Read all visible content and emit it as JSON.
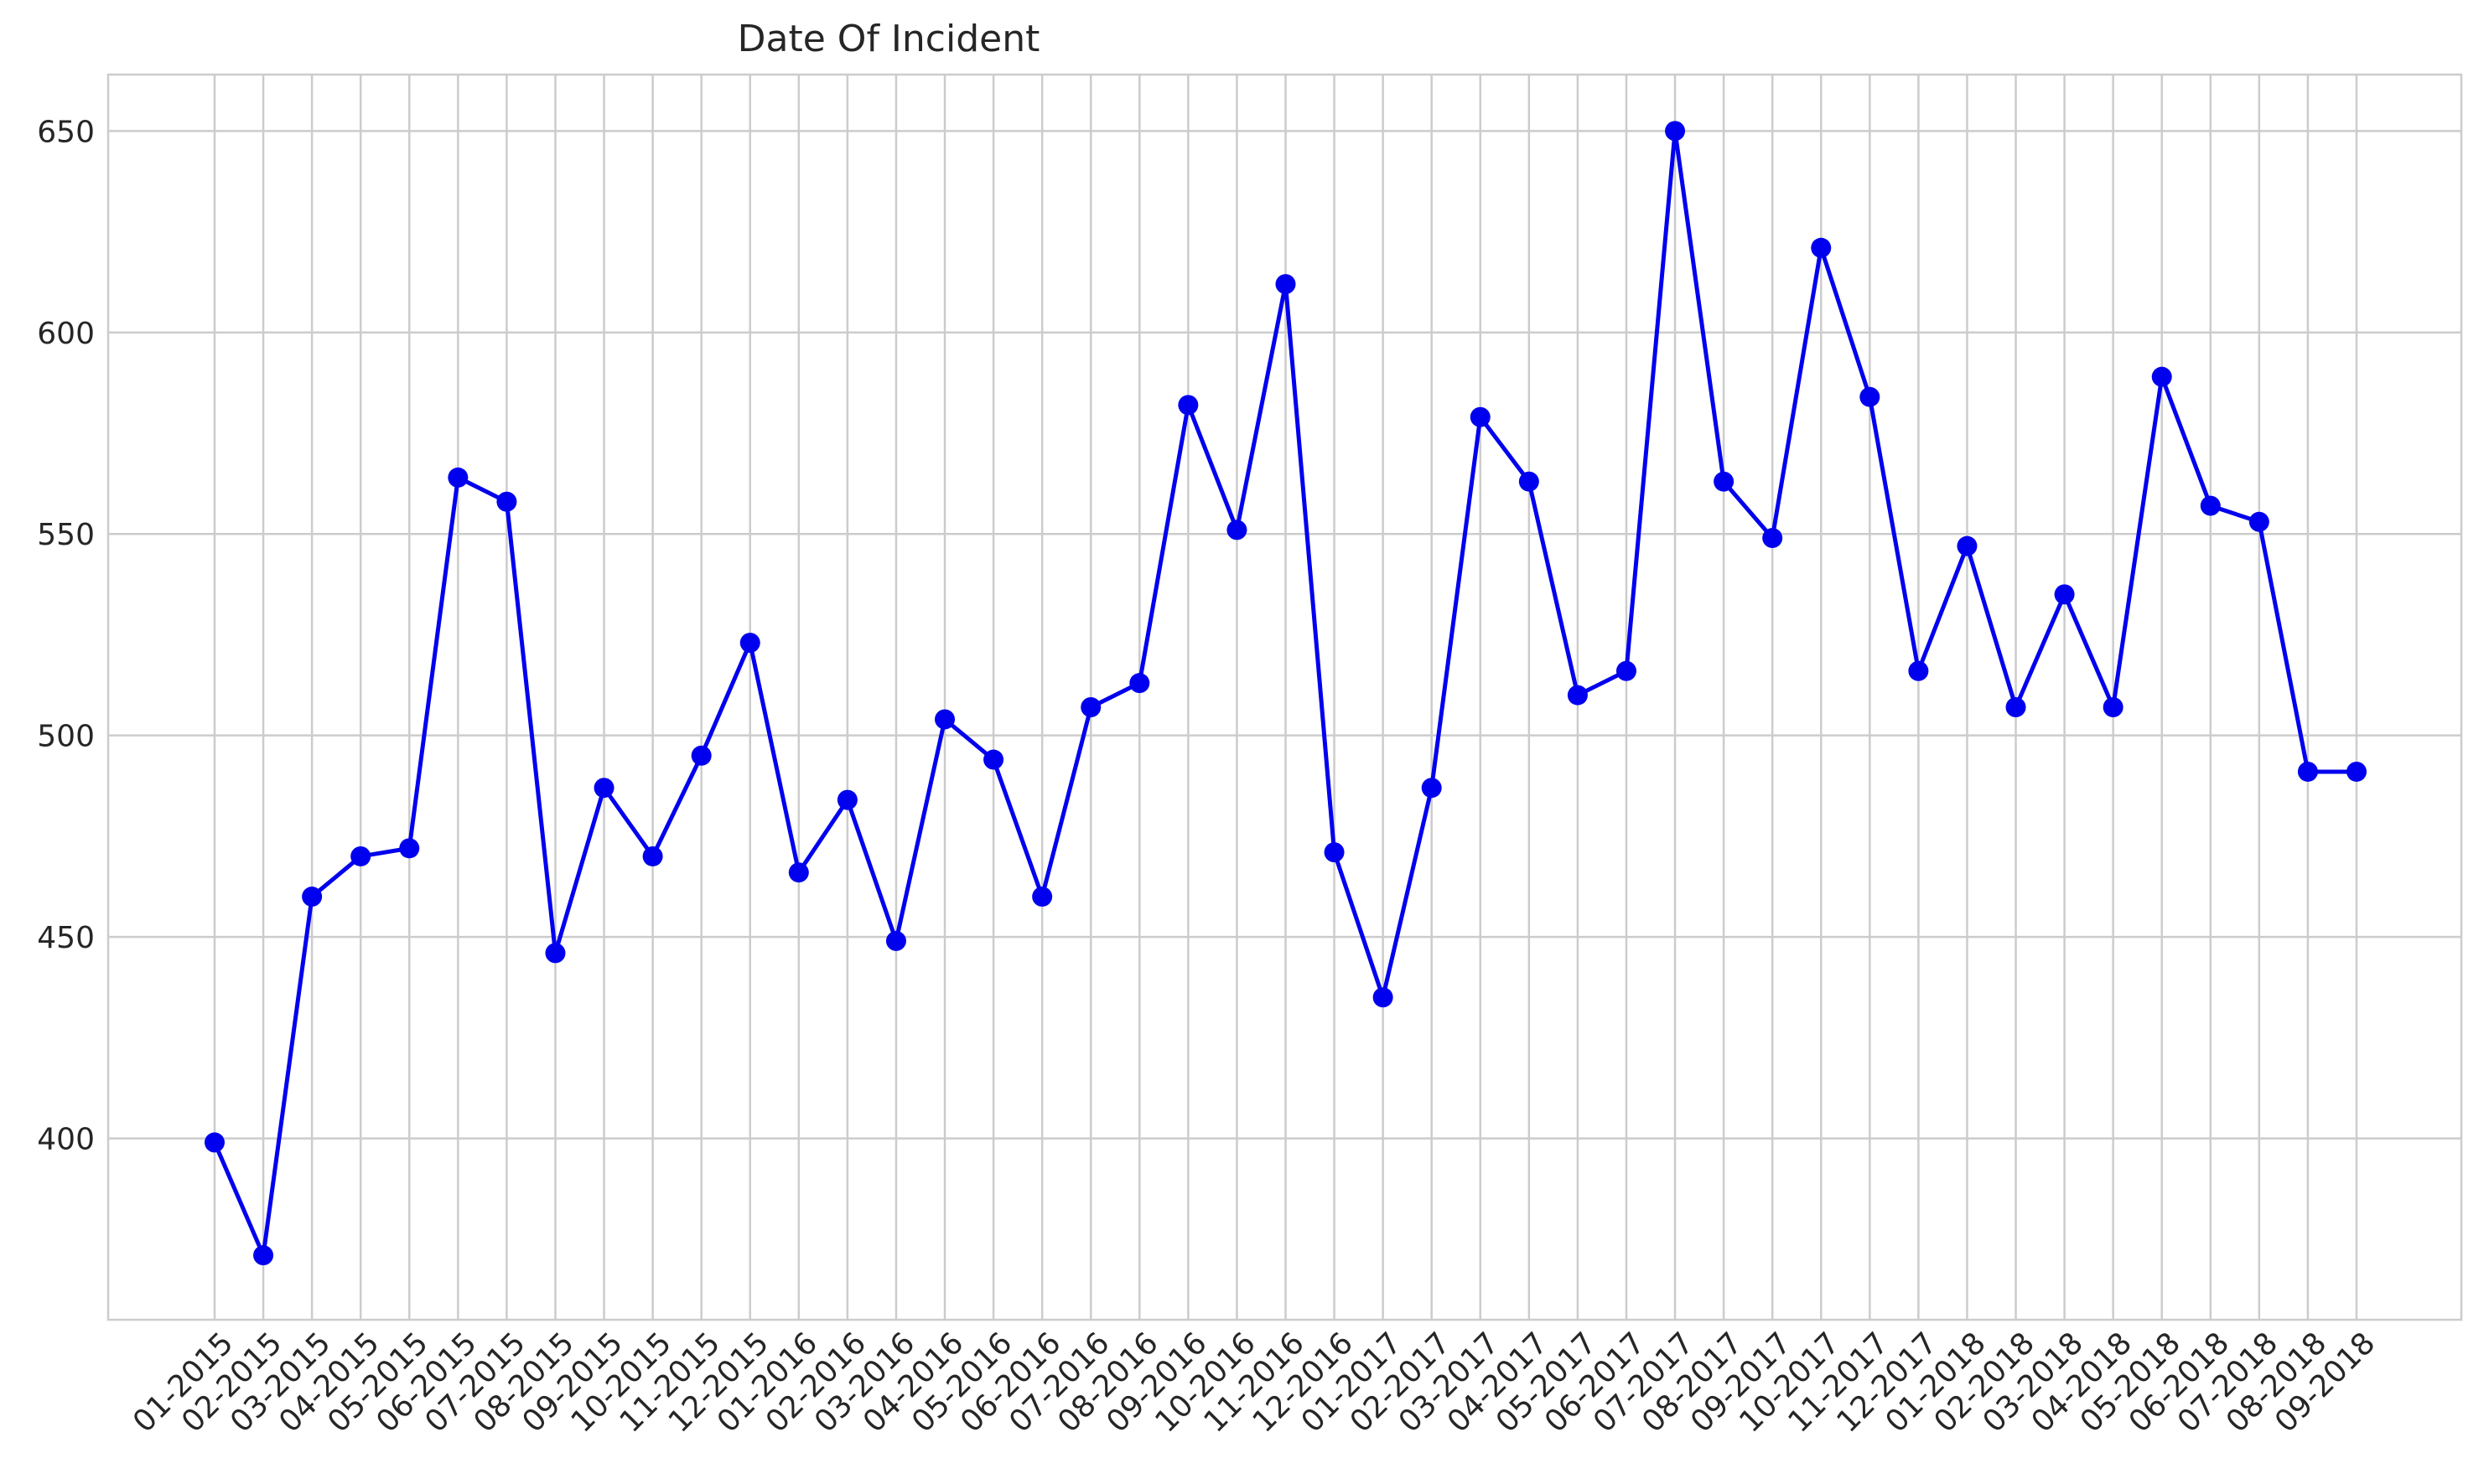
{
  "chart_data": {
    "type": "line",
    "title": "Date Of Incident",
    "xlabel": "",
    "ylabel": "",
    "ylim": [
      355,
      664
    ],
    "yticks": [
      400,
      450,
      500,
      550,
      600,
      650
    ],
    "grid": true,
    "marker": "circle",
    "line_color": "#0000ee",
    "grid_color": "#cccccc",
    "categories": [
      "01-2015",
      "02-2015",
      "03-2015",
      "04-2015",
      "05-2015",
      "06-2015",
      "07-2015",
      "08-2015",
      "09-2015",
      "10-2015",
      "11-2015",
      "12-2015",
      "01-2016",
      "02-2016",
      "03-2016",
      "04-2016",
      "05-2016",
      "06-2016",
      "07-2016",
      "08-2016",
      "09-2016",
      "10-2016",
      "11-2016",
      "12-2016",
      "01-2017",
      "02-2017",
      "03-2017",
      "04-2017",
      "05-2017",
      "06-2017",
      "07-2017",
      "08-2017",
      "09-2017",
      "10-2017",
      "11-2017",
      "12-2017",
      "01-2018",
      "02-2018",
      "03-2018",
      "04-2018",
      "05-2018",
      "06-2018",
      "07-2018",
      "08-2018",
      "09-2018"
    ],
    "values": [
      399,
      371,
      460,
      470,
      472,
      564,
      558,
      446,
      487,
      470,
      495,
      523,
      466,
      484,
      449,
      504,
      494,
      460,
      507,
      513,
      582,
      551,
      612,
      471,
      435,
      487,
      579,
      563,
      510,
      516,
      650,
      563,
      549,
      621,
      584,
      516,
      547,
      507,
      535,
      507,
      589,
      557,
      553,
      491,
      491
    ]
  }
}
